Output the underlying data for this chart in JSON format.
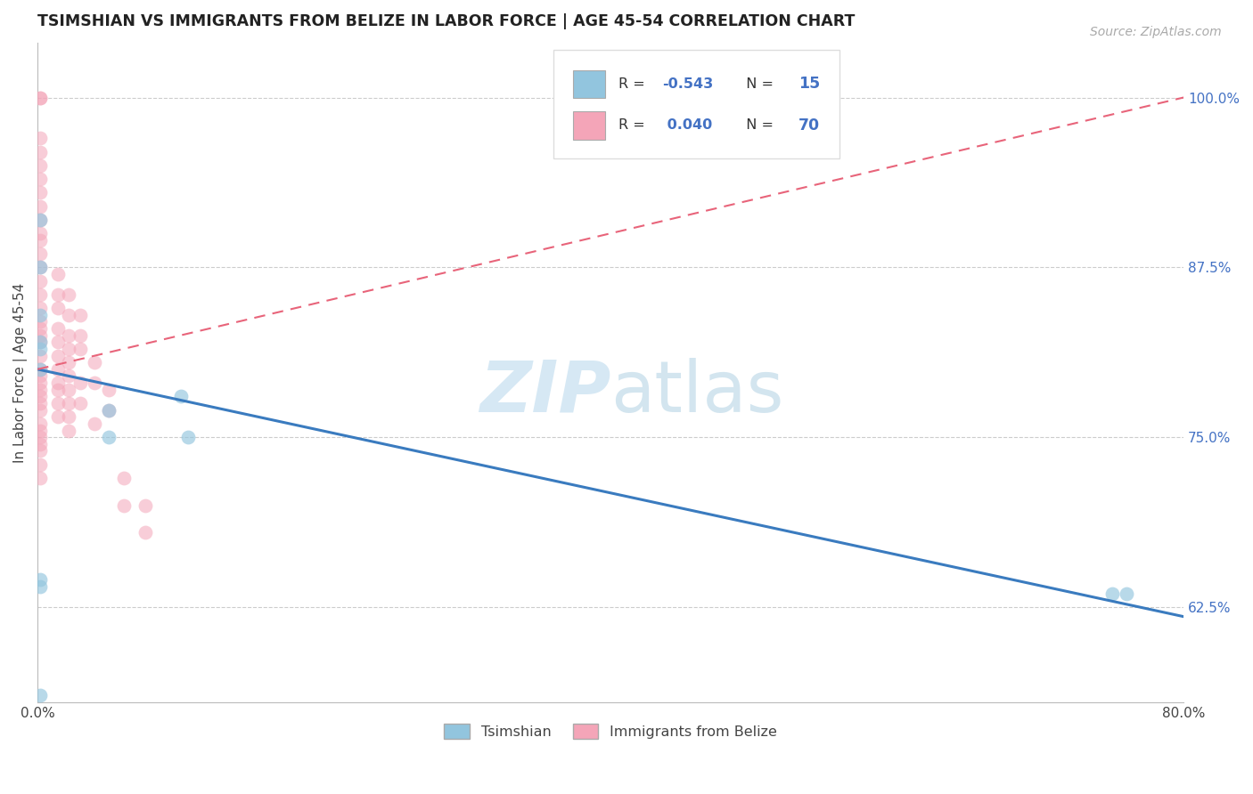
{
  "title": "TSIMSHIAN VS IMMIGRANTS FROM BELIZE IN LABOR FORCE | AGE 45-54 CORRELATION CHART",
  "source": "Source: ZipAtlas.com",
  "ylabel": "In Labor Force | Age 45-54",
  "xmin": 0.0,
  "xmax": 0.8,
  "ymin": 0.555,
  "ymax": 1.04,
  "xticks": [
    0.0,
    0.1,
    0.2,
    0.3,
    0.4,
    0.5,
    0.6,
    0.7,
    0.8
  ],
  "xticklabels": [
    "0.0%",
    "",
    "",
    "",
    "",
    "",
    "",
    "",
    "80.0%"
  ],
  "yticks_right": [
    0.625,
    0.75,
    0.875,
    1.0
  ],
  "ytick_labels_right": [
    "62.5%",
    "75.0%",
    "87.5%",
    "100.0%"
  ],
  "legend_labels_bottom": [
    "Tsimshian",
    "Immigrants from Belize"
  ],
  "blue_color": "#92c5de",
  "pink_color": "#f4a5b8",
  "blue_line_color": "#3a7bbf",
  "pink_line_color": "#e8647a",
  "watermark_color": "#ddeef8",
  "blue_points_x": [
    0.002,
    0.002,
    0.002,
    0.002,
    0.002,
    0.002,
    0.05,
    0.05,
    0.1,
    0.105,
    0.75,
    0.76,
    0.002,
    0.002,
    0.002
  ],
  "blue_points_y": [
    0.84,
    0.875,
    0.91,
    0.82,
    0.815,
    0.8,
    0.77,
    0.75,
    0.78,
    0.75,
    0.635,
    0.635,
    0.645,
    0.64,
    0.56
  ],
  "pink_points_x": [
    0.002,
    0.002,
    0.002,
    0.002,
    0.002,
    0.002,
    0.002,
    0.002,
    0.002,
    0.002,
    0.002,
    0.002,
    0.002,
    0.002,
    0.002,
    0.002,
    0.002,
    0.002,
    0.002,
    0.002,
    0.002,
    0.002,
    0.002,
    0.002,
    0.002,
    0.002,
    0.002,
    0.002,
    0.002,
    0.002,
    0.002,
    0.002,
    0.002,
    0.002,
    0.002,
    0.014,
    0.014,
    0.014,
    0.014,
    0.014,
    0.014,
    0.014,
    0.014,
    0.014,
    0.014,
    0.014,
    0.022,
    0.022,
    0.022,
    0.022,
    0.022,
    0.022,
    0.022,
    0.022,
    0.022,
    0.022,
    0.03,
    0.03,
    0.03,
    0.03,
    0.03,
    0.04,
    0.04,
    0.04,
    0.05,
    0.05,
    0.06,
    0.06,
    0.075,
    0.075
  ],
  "pink_points_y": [
    1.0,
    1.0,
    0.97,
    0.96,
    0.95,
    0.94,
    0.93,
    0.92,
    0.91,
    0.9,
    0.895,
    0.885,
    0.875,
    0.865,
    0.855,
    0.845,
    0.835,
    0.83,
    0.825,
    0.82,
    0.81,
    0.8,
    0.795,
    0.79,
    0.785,
    0.78,
    0.775,
    0.77,
    0.76,
    0.755,
    0.75,
    0.745,
    0.74,
    0.73,
    0.72,
    0.87,
    0.855,
    0.845,
    0.83,
    0.82,
    0.81,
    0.8,
    0.79,
    0.785,
    0.775,
    0.765,
    0.855,
    0.84,
    0.825,
    0.815,
    0.805,
    0.795,
    0.785,
    0.775,
    0.765,
    0.755,
    0.84,
    0.825,
    0.815,
    0.79,
    0.775,
    0.805,
    0.79,
    0.76,
    0.785,
    0.77,
    0.72,
    0.7,
    0.7,
    0.68
  ],
  "blue_trendline_x": [
    0.0,
    0.8
  ],
  "blue_trendline_y": [
    0.8,
    0.618
  ],
  "pink_trendline_x": [
    0.0,
    0.8
  ],
  "pink_trendline_y": [
    0.8,
    1.0
  ],
  "legend_r1": "-0.543",
  "legend_n1": "15",
  "legend_r2": "0.040",
  "legend_n2": "70"
}
